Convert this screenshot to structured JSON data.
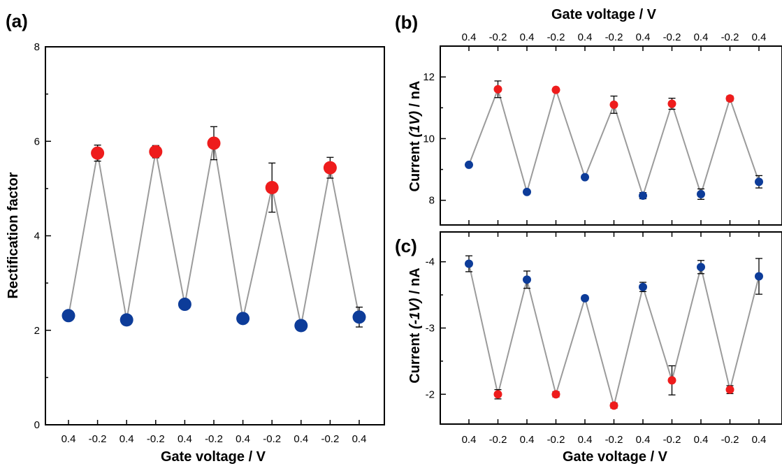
{
  "colors": {
    "positive_gate": "#0d3c99",
    "negative_gate": "#ee1c1c",
    "line": "#9b9b9b"
  },
  "chart_data": [
    {
      "panel_label": "(a)",
      "type": "scatter",
      "connected_by_line": true,
      "xlabel": "Gate voltage / V",
      "ylabel": "Rectification factor",
      "categories": [
        "0.4",
        "-0.2",
        "0.4",
        "-0.2",
        "0.4",
        "-0.2",
        "0.4",
        "-0.2",
        "0.4",
        "-0.2",
        "0.4"
      ],
      "ylim": [
        0,
        8
      ],
      "yticks": [
        0,
        2,
        4,
        6,
        8
      ],
      "yticklabels": [
        "0",
        "2",
        "4",
        "6",
        "8"
      ],
      "values": [
        2.31,
        5.75,
        2.22,
        5.78,
        2.55,
        5.96,
        2.25,
        5.02,
        2.1,
        5.44,
        2.28
      ],
      "errors": [
        0.05,
        0.17,
        0.05,
        0.13,
        0.05,
        0.35,
        0.05,
        0.52,
        0.05,
        0.22,
        0.21
      ],
      "grid": false
    },
    {
      "panel_label": "(b)",
      "type": "scatter",
      "connected_by_line": true,
      "xlabel": "Gate voltage / V",
      "xaxis_position": "top",
      "ylabel_parts": [
        "Current ",
        "(1V)",
        " / nA"
      ],
      "categories": [
        "0.4",
        "-0.2",
        "0.4",
        "-0.2",
        "0.4",
        "-0.2",
        "0.4",
        "-0.2",
        "0.4",
        "-0.2",
        "0.4"
      ],
      "ylim": [
        7.2,
        13.0
      ],
      "yticks": [
        8,
        10,
        12
      ],
      "yticklabels": [
        "8",
        "10",
        "12"
      ],
      "values": [
        9.15,
        11.6,
        8.27,
        11.58,
        8.75,
        11.1,
        8.15,
        11.13,
        8.2,
        11.3,
        8.6
      ],
      "errors": [
        0.05,
        0.27,
        0.05,
        0.05,
        0.05,
        0.28,
        0.1,
        0.18,
        0.17,
        0.08,
        0.2
      ],
      "grid": false
    },
    {
      "panel_label": "(c)",
      "type": "scatter",
      "connected_by_line": true,
      "xlabel": "Gate voltage / V",
      "ylabel_parts": [
        "Current ",
        "(-1V)",
        " / nA"
      ],
      "categories": [
        "0.4",
        "-0.2",
        "0.4",
        "-0.2",
        "0.4",
        "-0.2",
        "0.4",
        "-0.2",
        "0.4",
        "-0.2",
        "0.4"
      ],
      "y_inverted": true,
      "ylim": [
        -4.45,
        -1.55
      ],
      "yticks": [
        -4,
        -3,
        -2
      ],
      "yticklabels": [
        "-4",
        "-3",
        "-2"
      ],
      "values": [
        -3.97,
        -2.0,
        -3.73,
        -2.0,
        -3.45,
        -1.83,
        -3.62,
        -2.21,
        -3.92,
        -2.07,
        -3.78
      ],
      "errors": [
        0.12,
        0.07,
        0.13,
        0.04,
        0.03,
        0.04,
        0.07,
        0.22,
        0.1,
        0.06,
        0.27
      ],
      "grid": false
    }
  ]
}
